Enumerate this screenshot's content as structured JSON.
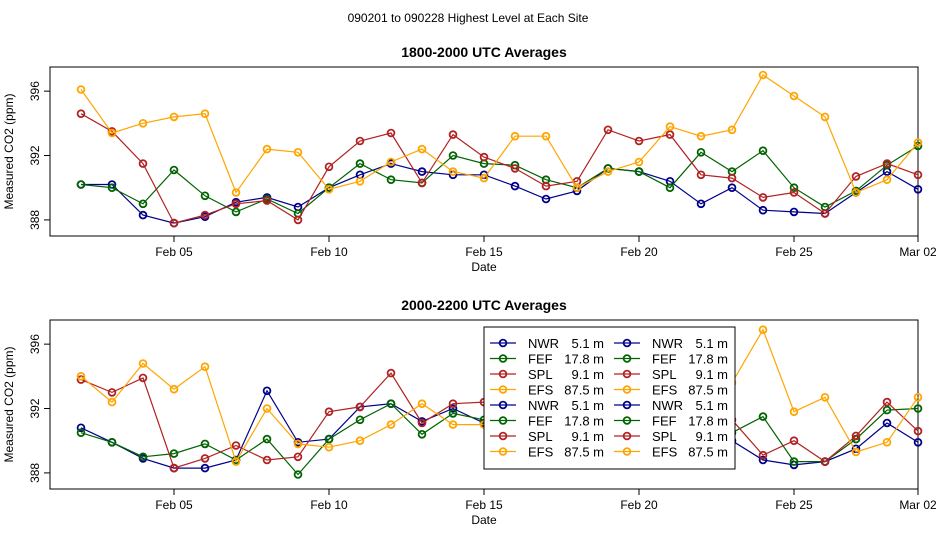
{
  "suptitle": "090201  to  090228 Highest Level at Each Site",
  "colors": {
    "NWR": "#00008b",
    "FEF": "#006400",
    "SPL": "#b22222",
    "EFS": "#ffa500"
  },
  "chart_data": [
    {
      "type": "line",
      "title": "1800-2000 UTC Averages",
      "xlabel": "Date",
      "ylabel": "Measured CO2 (ppm)",
      "xlim": [
        1,
        29
      ],
      "ylim": [
        387,
        397.5
      ],
      "xticks": [
        {
          "v": 5,
          "label": "Feb 05"
        },
        {
          "v": 10,
          "label": "Feb 10"
        },
        {
          "v": 15,
          "label": "Feb 15"
        },
        {
          "v": 20,
          "label": "Feb 20"
        },
        {
          "v": 25,
          "label": "Feb 25"
        },
        {
          "v": 29,
          "label": "Mar 02"
        }
      ],
      "yticks": [
        388,
        392,
        396
      ],
      "x": [
        2,
        3,
        4,
        5,
        6,
        7,
        8,
        9,
        10,
        11,
        12,
        13,
        14,
        15,
        16,
        17,
        18,
        19,
        20,
        21,
        22,
        23,
        24,
        25,
        26,
        27,
        28,
        29
      ],
      "series": [
        {
          "name": "NWR",
          "height": "5.1 m",
          "values": [
            390.2,
            390.2,
            388.3,
            387.8,
            388.2,
            389.1,
            389.4,
            388.8,
            390.0,
            390.8,
            391.5,
            391.0,
            390.8,
            390.8,
            390.1,
            389.3,
            389.8,
            391.2,
            391.0,
            390.4,
            389.0,
            390.0,
            388.6,
            388.5,
            388.4,
            389.7,
            391.0,
            389.9
          ]
        },
        {
          "name": "FEF",
          "height": "17.8 m",
          "values": [
            390.2,
            390.0,
            389.0,
            391.1,
            389.5,
            388.5,
            389.3,
            388.4,
            390.0,
            391.5,
            390.5,
            390.3,
            392.0,
            391.5,
            391.4,
            390.5,
            390.0,
            391.2,
            391.0,
            390.0,
            392.2,
            391.0,
            392.3,
            390.0,
            388.8,
            389.8,
            391.4,
            392.6
          ]
        },
        {
          "name": "SPL",
          "height": "9.1 m",
          "values": [
            394.6,
            393.5,
            391.5,
            387.8,
            388.3,
            389.0,
            389.2,
            388.0,
            391.3,
            392.9,
            393.4,
            390.3,
            393.3,
            391.9,
            391.2,
            390.1,
            390.4,
            393.6,
            392.9,
            393.3,
            390.8,
            390.6,
            389.4,
            389.7,
            388.4,
            390.7,
            391.5,
            390.8
          ]
        },
        {
          "name": "EFS",
          "height": "87.5 m",
          "values": [
            396.1,
            393.4,
            394.0,
            394.4,
            394.6,
            389.7,
            392.4,
            392.2,
            389.9,
            390.4,
            391.6,
            392.4,
            391.0,
            390.6,
            393.2,
            393.2,
            390.0,
            391.0,
            391.6,
            393.8,
            393.2,
            393.6,
            397.0,
            395.7,
            394.4,
            389.7,
            390.5,
            392.8
          ]
        }
      ]
    },
    {
      "type": "line",
      "title": "2000-2200 UTC Averages",
      "xlabel": "Date",
      "ylabel": "Measured CO2 (ppm)",
      "xlim": [
        1,
        29
      ],
      "ylim": [
        387,
        397.5
      ],
      "xticks": [
        {
          "v": 5,
          "label": "Feb 05"
        },
        {
          "v": 10,
          "label": "Feb 10"
        },
        {
          "v": 15,
          "label": "Feb 15"
        },
        {
          "v": 20,
          "label": "Feb 20"
        },
        {
          "v": 25,
          "label": "Feb 25"
        },
        {
          "v": 29,
          "label": "Mar 02"
        }
      ],
      "yticks": [
        388,
        392,
        396
      ],
      "x": [
        2,
        3,
        4,
        5,
        6,
        7,
        8,
        9,
        10,
        11,
        12,
        13,
        14,
        15,
        16,
        17,
        18,
        19,
        20,
        21,
        22,
        23,
        24,
        25,
        26,
        27,
        28,
        29
      ],
      "series": [
        {
          "name": "NWR",
          "height": "5.1 m",
          "values": [
            390.8,
            389.9,
            388.9,
            388.3,
            388.3,
            388.8,
            393.1,
            389.9,
            390.1,
            392.1,
            392.3,
            391.2,
            392.0,
            391.1,
            391.0,
            389.5,
            389.6,
            390.0,
            391.0,
            390.1,
            388.8,
            390.0,
            388.8,
            388.5,
            388.7,
            389.5,
            391.1,
            389.9
          ]
        },
        {
          "name": "FEF",
          "height": "17.8 m",
          "values": [
            390.5,
            389.9,
            389.0,
            389.2,
            389.8,
            388.8,
            390.1,
            387.9,
            390.1,
            391.3,
            392.3,
            390.4,
            391.7,
            391.3,
            391.0,
            390.5,
            390.9,
            391.5,
            391.0,
            390.2,
            391.3,
            390.5,
            391.5,
            388.7,
            388.7,
            390.1,
            391.9,
            392.0
          ]
        },
        {
          "name": "SPL",
          "height": "9.1 m",
          "values": [
            393.8,
            393.0,
            393.9,
            388.3,
            388.9,
            389.7,
            388.8,
            389.0,
            391.8,
            392.1,
            394.2,
            391.1,
            392.3,
            392.4,
            391.0,
            390.2,
            390.3,
            391.8,
            391.5,
            391.0,
            391.0,
            391.3,
            389.1,
            390.0,
            388.7,
            390.3,
            392.4,
            390.6
          ]
        },
        {
          "name": "EFS",
          "height": "87.5 m",
          "values": [
            394.0,
            392.4,
            394.8,
            393.2,
            394.6,
            388.7,
            392.0,
            389.8,
            389.6,
            390.0,
            391.0,
            392.3,
            391.0,
            391.0,
            390.5,
            390.0,
            390.0,
            391.0,
            391.0,
            391.5,
            391.5,
            393.6,
            396.9,
            391.8,
            392.7,
            389.3,
            389.9,
            392.7
          ]
        }
      ],
      "legend": {
        "placement": "top-center",
        "entries": [
          {
            "series": "NWR",
            "name": "NWR",
            "height": "5.1 m"
          },
          {
            "series": "FEF",
            "name": "FEF",
            "height": "17.8 m"
          },
          {
            "series": "SPL",
            "name": "SPL",
            "height": "9.1 m"
          },
          {
            "series": "EFS",
            "name": "EFS",
            "height": "87.5 m"
          },
          {
            "series": "NWR",
            "name": "NWR",
            "height": "5.1 m"
          },
          {
            "series": "FEF",
            "name": "FEF",
            "height": "17.8 m"
          },
          {
            "series": "SPL",
            "name": "SPL",
            "height": "9.1 m"
          },
          {
            "series": "EFS",
            "name": "EFS",
            "height": "87.5 m"
          },
          {
            "series": "NWR",
            "name": "NWR",
            "height": "5.1 m"
          },
          {
            "series": "FEF",
            "name": "FEF",
            "height": "17.8 m"
          },
          {
            "series": "SPL",
            "name": "SPL",
            "height": "9.1 m"
          },
          {
            "series": "EFS",
            "name": "EFS",
            "height": "87.5 m"
          },
          {
            "series": "NWR",
            "name": "NWR",
            "height": "5.1 m"
          },
          {
            "series": "FEF",
            "name": "FEF",
            "height": "17.8 m"
          },
          {
            "series": "SPL",
            "name": "SPL",
            "height": "9.1 m"
          },
          {
            "series": "EFS",
            "name": "EFS",
            "height": "87.5 m"
          }
        ]
      }
    }
  ]
}
